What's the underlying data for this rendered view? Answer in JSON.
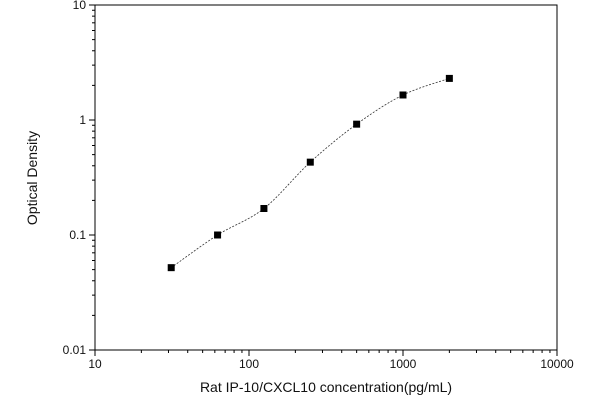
{
  "chart_data": {
    "type": "scatter",
    "title": "",
    "xlabel": "Rat IP-10/CXCL10 concentration(pg/mL)",
    "ylabel": "Optical Density",
    "xscale": "log",
    "yscale": "log",
    "xlim": [
      10,
      10000
    ],
    "ylim": [
      0.01,
      10
    ],
    "x_ticks": [
      10,
      100,
      1000,
      10000
    ],
    "x_tick_labels": [
      "10",
      "100",
      "1000",
      "10000"
    ],
    "y_ticks": [
      0.01,
      0.1,
      1,
      10
    ],
    "y_tick_labels": [
      "0.01",
      "0.1",
      "1",
      "10"
    ],
    "grid": false,
    "legend": "none",
    "series": [
      {
        "x": [
          31.25,
          62.5,
          125,
          250,
          500,
          1000,
          2000
        ],
        "y": [
          0.052,
          0.1,
          0.17,
          0.43,
          0.92,
          1.65,
          2.3
        ],
        "marker": "square",
        "fit": "4PL curve, dotted"
      }
    ],
    "colors": {
      "marker": "#000000",
      "axis": "#000000",
      "curve": "#333333"
    }
  }
}
